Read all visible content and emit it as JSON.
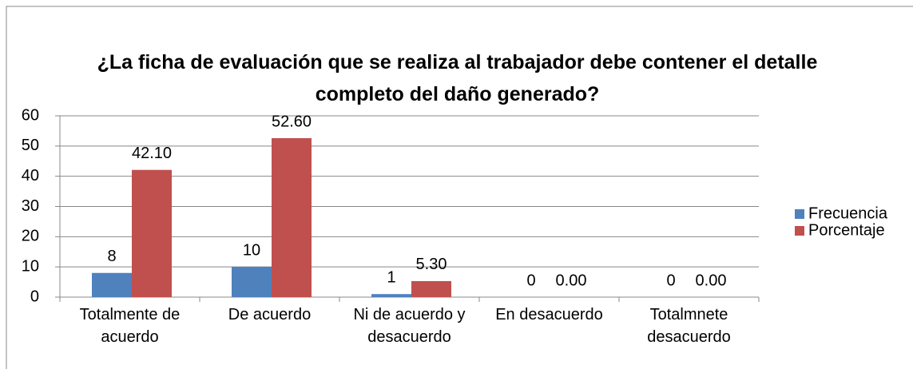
{
  "chart_data": {
    "type": "bar",
    "title": "¿La ficha de evaluación que se realiza al trabajador debe contener el detalle completo del daño generado?",
    "categories": [
      "Totalmente de acuerdo",
      "De acuerdo",
      "Ni de acuerdo y desacuerdo",
      "En desacuerdo",
      "Totalmnete desacuerdo"
    ],
    "series": [
      {
        "name": "Frecuencia",
        "color": "#4f81bd",
        "values": [
          8,
          10,
          1,
          0,
          0
        ]
      },
      {
        "name": "Porcentaje",
        "color": "#c0504d",
        "values": [
          42.1,
          52.6,
          5.3,
          0,
          0
        ],
        "value_labels": [
          "42.10",
          "52.60",
          "5.30",
          "0.00",
          "0.00"
        ]
      }
    ],
    "ylim": [
      0,
      60
    ],
    "yticks": [
      0,
      10,
      20,
      30,
      40,
      50,
      60
    ],
    "grid": true,
    "legend": "right"
  }
}
